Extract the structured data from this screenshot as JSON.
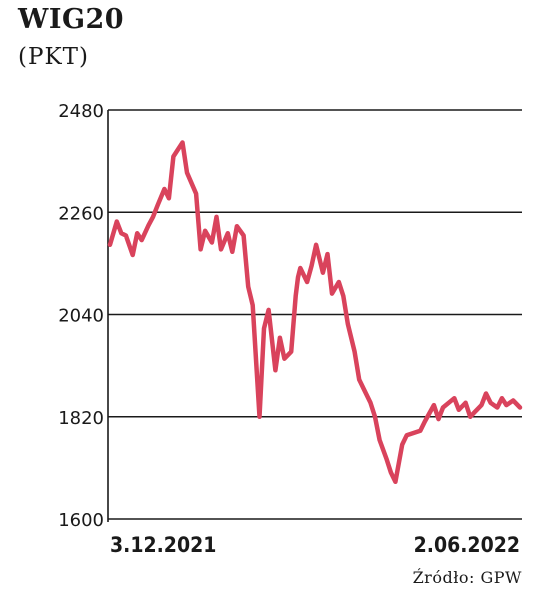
{
  "chart_data": {
    "type": "line",
    "title": "WIG20",
    "subtitle": "(PKT)",
    "ylim": [
      1600,
      2480
    ],
    "yticks": [
      "2480",
      "2260",
      "2040",
      "1820",
      "1600"
    ],
    "ytick_values": [
      2480,
      2260,
      2040,
      1820,
      1600
    ],
    "x_start_label": "3.12.2021",
    "x_end_label": "2.06.2022",
    "source": "Źródło: GPW",
    "grid": true,
    "line_color": "#d9435c",
    "series": [
      {
        "x": [
          "2021-12-03",
          "2021-12-06",
          "2021-12-08",
          "2021-12-10",
          "2021-12-13",
          "2021-12-15",
          "2021-12-17",
          "2021-12-20",
          "2021-12-22",
          "2021-12-24",
          "2021-12-27",
          "2021-12-29",
          "2021-12-31",
          "2022-01-04",
          "2022-01-06",
          "2022-01-10",
          "2022-01-12",
          "2022-01-14",
          "2022-01-17",
          "2022-01-19",
          "2022-01-21",
          "2022-01-24",
          "2022-01-26",
          "2022-01-28",
          "2022-01-31",
          "2022-02-02",
          "2022-02-04",
          "2022-02-07",
          "2022-02-09",
          "2022-02-11",
          "2022-02-14",
          "2022-02-16",
          "2022-02-18",
          "2022-02-21",
          "2022-02-23",
          "2022-02-24",
          "2022-02-25",
          "2022-02-28",
          "2022-03-02",
          "2022-03-04",
          "2022-03-07",
          "2022-03-09",
          "2022-03-11",
          "2022-03-14",
          "2022-03-16",
          "2022-03-18",
          "2022-03-21",
          "2022-03-23",
          "2022-03-25",
          "2022-03-28",
          "2022-03-30",
          "2022-04-01",
          "2022-04-04",
          "2022-04-06",
          "2022-04-08",
          "2022-04-11",
          "2022-04-13",
          "2022-04-19",
          "2022-04-21",
          "2022-04-25",
          "2022-04-27",
          "2022-04-29",
          "2022-05-04",
          "2022-05-06",
          "2022-05-09",
          "2022-05-11",
          "2022-05-13",
          "2022-05-16",
          "2022-05-18",
          "2022-05-20",
          "2022-05-23",
          "2022-05-25",
          "2022-05-27",
          "2022-05-30",
          "2022-06-02"
        ],
        "values": [
          2190,
          2240,
          2215,
          2210,
          2168,
          2215,
          2200,
          2232,
          2250,
          2275,
          2310,
          2290,
          2380,
          2410,
          2345,
          2300,
          2180,
          2220,
          2195,
          2250,
          2180,
          2215,
          2175,
          2230,
          2210,
          2100,
          2060,
          1820,
          2010,
          2050,
          1920,
          1990,
          1945,
          1960,
          2080,
          2120,
          2140,
          2110,
          2145,
          2190,
          2130,
          2170,
          2085,
          2110,
          2080,
          2020,
          1960,
          1900,
          1880,
          1850,
          1820,
          1770,
          1730,
          1700,
          1680,
          1760,
          1780,
          1790,
          1810,
          1845,
          1815,
          1840,
          1860,
          1835,
          1850,
          1820,
          1830,
          1845,
          1870,
          1850,
          1840,
          1860,
          1845,
          1855,
          1840
        ]
      }
    ]
  }
}
